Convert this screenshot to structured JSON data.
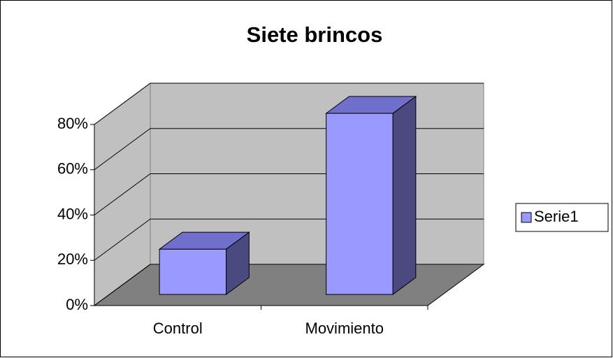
{
  "chart_data": {
    "type": "bar3d",
    "title": "Siete brincos",
    "categories": [
      "Control",
      "Movimiento"
    ],
    "series": [
      {
        "name": "Serie1",
        "color": "#9999ff",
        "values": [
          20,
          80
        ]
      }
    ],
    "ylim": [
      0,
      80
    ],
    "yticks": [
      {
        "value": 0,
        "label": "0%"
      },
      {
        "value": 20,
        "label": "20%"
      },
      {
        "value": 40,
        "label": "40%"
      },
      {
        "value": 60,
        "label": "60%"
      },
      {
        "value": 80,
        "label": "80%"
      }
    ],
    "grid": true,
    "legend": "right"
  }
}
